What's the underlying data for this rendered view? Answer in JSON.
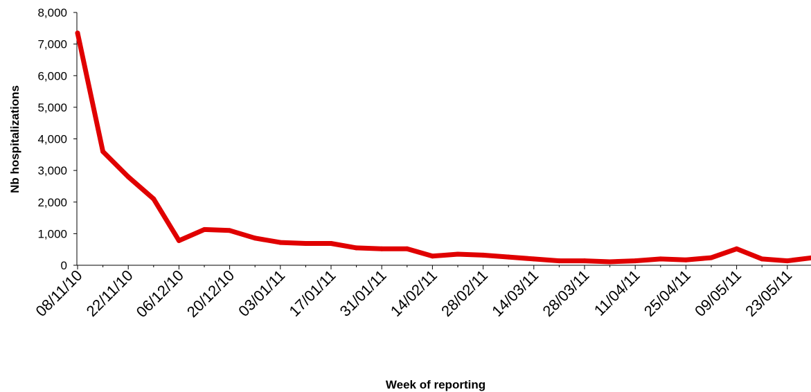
{
  "chart_data": {
    "type": "line",
    "xlabel": "Week of reporting",
    "ylabel": "Nb hospitalizations",
    "ylim": [
      0,
      8000
    ],
    "yticks": [
      "0",
      "1,000",
      "2,000",
      "3,000",
      "4,000",
      "5,000",
      "6,000",
      "7,000",
      "8,000"
    ],
    "ytick_values": [
      0,
      1000,
      2000,
      3000,
      4000,
      5000,
      6000,
      7000,
      8000
    ],
    "xtick_labels": [
      "08/11/10",
      "22/11/10",
      "06/12/10",
      "20/12/10",
      "03/01/11",
      "17/01/11",
      "31/01/11",
      "14/02/11",
      "28/02/11",
      "14/03/11",
      "28/03/11",
      "11/04/11",
      "25/04/11",
      "09/05/11",
      "23/05/11"
    ],
    "x": [
      "08/11/10",
      "15/11/10",
      "22/11/10",
      "29/11/10",
      "06/12/10",
      "13/12/10",
      "20/12/10",
      "27/12/10",
      "03/01/11",
      "10/01/11",
      "17/01/11",
      "24/01/11",
      "31/01/11",
      "07/02/11",
      "14/02/11",
      "21/02/11",
      "28/02/11",
      "07/03/11",
      "14/03/11",
      "21/03/11",
      "28/03/11",
      "04/04/11",
      "11/04/11",
      "18/04/11",
      "25/04/11",
      "02/05/11",
      "09/05/11",
      "16/05/11",
      "23/05/11",
      "30/05/11"
    ],
    "series": [
      {
        "color": "#e00000",
        "values": [
          7350,
          3600,
          2800,
          2100,
          780,
          1130,
          1100,
          860,
          720,
          690,
          690,
          550,
          520,
          520,
          290,
          350,
          320,
          260,
          200,
          140,
          140,
          110,
          140,
          200,
          170,
          240,
          520,
          200,
          140,
          240
        ]
      }
    ],
    "grid": false
  }
}
